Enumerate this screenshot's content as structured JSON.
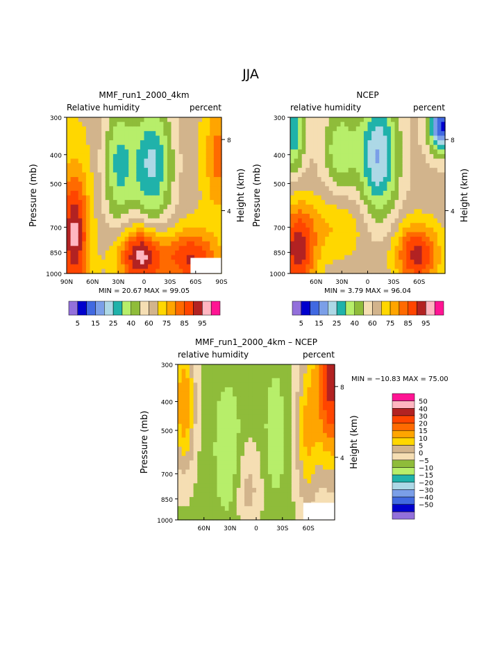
{
  "figure_title": "JJA",
  "colors": {
    "rh_scale": [
      "#9370db",
      "#0000cd",
      "#4169e1",
      "#7b9fe8",
      "#add8e6",
      "#20b2aa",
      "#b7ee6a",
      "#8fbc3a",
      "#f5deb3",
      "#d2b48c",
      "#ffd700",
      "#ffa500",
      "#ff6a00",
      "#ff4500",
      "#b22222",
      "#ffb6c1",
      "#ff1493"
    ],
    "diff_scale": [
      "#9370db",
      "#0000cd",
      "#4169e1",
      "#7b9fe8",
      "#add8e6",
      "#20b2aa",
      "#b7ee6a",
      "#8fbc3a",
      "#f5deb3",
      "#d2b48c",
      "#ffd700",
      "#ffa500",
      "#ff6a00",
      "#ff4500",
      "#b22222",
      "#ffb6c1",
      "#ff1493"
    ]
  },
  "chart_data": [
    {
      "type": "heatmap",
      "title": "MMF_run1_2000_4km",
      "left_label": "Relative humidity",
      "right_label": "percent",
      "ylabel": "Pressure (mb)",
      "y2label": "Height (km)",
      "y_ticks": [
        "300",
        "400",
        "500",
        "700",
        "850",
        "1000"
      ],
      "y2_ticks": [
        "8",
        "4"
      ],
      "x_ticks": [
        "90N",
        "60N",
        "30N",
        "0",
        "30S",
        "60S",
        "90S"
      ],
      "stats": "MIN =   20.67   MAX =   99.05",
      "min": 20.67,
      "max": 99.05,
      "colorbar_labels": [
        "5",
        "15",
        "25",
        "40",
        "60",
        "75",
        "85",
        "95"
      ]
    },
    {
      "type": "heatmap",
      "title": "NCEP",
      "left_label": "relative humidity",
      "right_label": "percent",
      "ylabel": "Pressure (mb)",
      "y2label": "Height (km)",
      "y_ticks": [
        "300",
        "400",
        "500",
        "700",
        "850",
        "1000"
      ],
      "y2_ticks": [
        "8",
        "4"
      ],
      "x_ticks": [
        "60N",
        "30N",
        "0",
        "30S",
        "60S"
      ],
      "stats": "MIN =    3.79   MAX =   96.04",
      "min": 3.79,
      "max": 96.04,
      "colorbar_labels": [
        "5",
        "15",
        "25",
        "40",
        "60",
        "75",
        "85",
        "95"
      ]
    },
    {
      "type": "heatmap",
      "title": "MMF_run1_2000_4km – NCEP",
      "left_label": "relative humidity",
      "right_label": "percent",
      "ylabel": "Pressure (mb)",
      "y2label": "Height (km)",
      "y_ticks": [
        "300",
        "400",
        "500",
        "700",
        "850",
        "1000"
      ],
      "y2_ticks": [
        "8",
        "4"
      ],
      "x_ticks": [
        "60N",
        "30N",
        "0",
        "30S",
        "60S"
      ],
      "stats": "MIN = −10.83   MAX =   75.00",
      "min": -10.83,
      "max": 75.0,
      "colorbar_labels": [
        "50",
        "40",
        "30",
        "20",
        "15",
        "10",
        "5",
        "0",
        "−5",
        "−10",
        "−15",
        "−20",
        "−30",
        "−40",
        "−50"
      ]
    }
  ]
}
